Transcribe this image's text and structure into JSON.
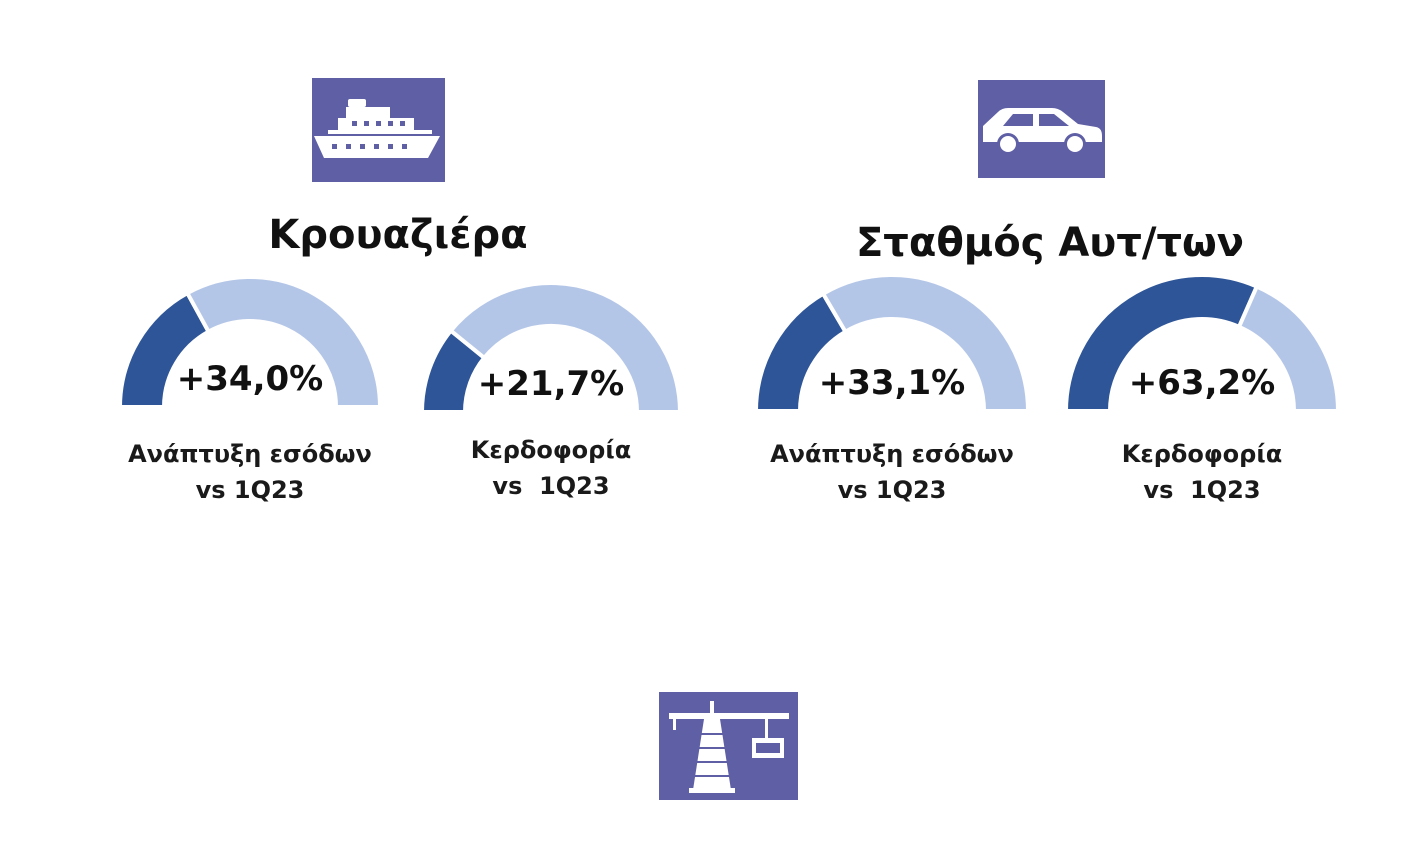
{
  "colors": {
    "icon_background": "#5f5fa6",
    "icon_foreground": "#ffffff",
    "gauge_filled": "#2e5597",
    "gauge_remaining": "#b4c6e7"
  },
  "icons": {
    "cruise": "ship-icon",
    "parking": "car-icon",
    "port": "crane-icon"
  },
  "sections": {
    "cruise": {
      "title": "Κρουαζιέρα"
    },
    "parking": {
      "title": "Σταθμός Αυτ/των"
    }
  },
  "chart_data": [
    {
      "type": "gauge",
      "section": "Κρουαζιέρα",
      "value_label": "+34,0%",
      "value": 34.0,
      "fill_fraction": 0.34,
      "label_line1": "Ανάπτυξη εσόδων",
      "label_line2": "vs 1Q23"
    },
    {
      "type": "gauge",
      "section": "Κρουαζιέρα",
      "value_label": "+21,7%",
      "value": 21.7,
      "fill_fraction": 0.217,
      "label_line1": "Κερδοφορία",
      "label_line2": "vs  1Q23"
    },
    {
      "type": "gauge",
      "section": "Σταθμός Αυτ/των",
      "value_label": "+33,1%",
      "value": 33.1,
      "fill_fraction": 0.331,
      "label_line1": "Ανάπτυξη εσόδων",
      "label_line2": "vs 1Q23"
    },
    {
      "type": "gauge",
      "section": "Σταθμός Αυτ/των",
      "value_label": "+63,2%",
      "value": 63.2,
      "fill_fraction": 0.632,
      "label_line1": "Κερδοφορία",
      "label_line2": "vs  1Q23"
    }
  ]
}
